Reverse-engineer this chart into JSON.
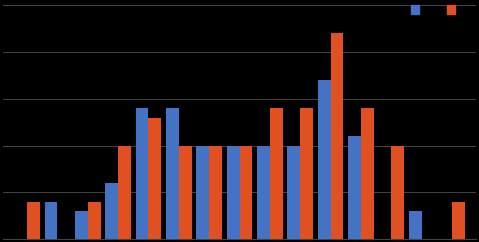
{
  "blue_values": [
    0,
    4,
    3,
    6,
    14,
    14,
    10,
    10,
    10,
    10,
    17,
    11,
    0,
    3,
    0
  ],
  "red_values": [
    4,
    0,
    4,
    10,
    13,
    10,
    10,
    10,
    14,
    14,
    22,
    14,
    10,
    0,
    4
  ],
  "blue_color": "#4472C4",
  "red_color": "#E05020",
  "background_color": "#000000",
  "grid_color": "#444444",
  "bar_width": 0.42,
  "ylim_max": 25,
  "n_gridlines": 5
}
